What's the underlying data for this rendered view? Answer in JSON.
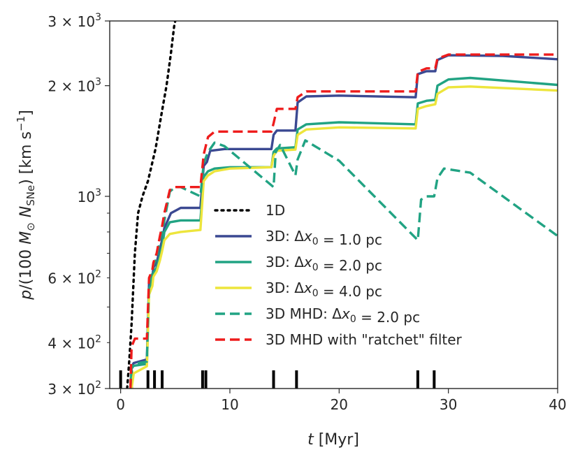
{
  "chart_data": {
    "type": "line",
    "yscale": "log",
    "xlim": [
      -1,
      40
    ],
    "ylim": [
      300,
      3000
    ],
    "xlabel": "t [Myr]",
    "ylabel": "p/(100 M⊙ N_SNe) [km s⁻¹]",
    "x_ticks": [
      0,
      10,
      20,
      30,
      40
    ],
    "x_tick_labels": [
      "0",
      "10",
      "20",
      "30",
      "40"
    ],
    "y_major_ticks": [
      300,
      1000,
      2000,
      3000
    ],
    "y_major_tick_labels": [
      {
        "mantissa": "3",
        "exp": "2"
      },
      {
        "mantissa": "",
        "exp": "3"
      },
      {
        "mantissa": "2",
        "exp": "3"
      },
      {
        "mantissa": "3",
        "exp": "3"
      }
    ],
    "y_minor_ticks": [
      400,
      600
    ],
    "y_minor_tick_labels": [
      {
        "mantissa": "4",
        "exp": "2"
      },
      {
        "mantissa": "6",
        "exp": "2"
      }
    ],
    "y_minor_unlabeled": [
      500,
      700,
      800,
      900
    ],
    "legend": {
      "placement": "lower-center",
      "entries": [
        {
          "series": "1D",
          "label_parts": [
            {
              "text": "1D"
            }
          ]
        },
        {
          "series": "3D dx1",
          "label_parts": [
            {
              "text": "3D: Δ"
            },
            {
              "text": "x",
              "italic": true
            },
            {
              "text": "0",
              "sub": true
            },
            {
              "text": " =  1.0 pc"
            }
          ]
        },
        {
          "series": "3D dx2",
          "label_parts": [
            {
              "text": "3D: Δ"
            },
            {
              "text": "x",
              "italic": true
            },
            {
              "text": "0",
              "sub": true
            },
            {
              "text": " =  2.0 pc"
            }
          ]
        },
        {
          "series": "3D dx4",
          "label_parts": [
            {
              "text": "3D: Δ"
            },
            {
              "text": "x",
              "italic": true
            },
            {
              "text": "0",
              "sub": true
            },
            {
              "text": " =  4.0 pc"
            }
          ]
        },
        {
          "series": "3D MHD dx2",
          "label_parts": [
            {
              "text": "3D MHD: Δ"
            },
            {
              "text": "x",
              "italic": true
            },
            {
              "text": "0",
              "sub": true
            },
            {
              "text": " =  2.0 pc"
            }
          ]
        },
        {
          "series": "3D MHD ratchet",
          "label_parts": [
            {
              "text": "3D MHD with \"ratchet\" filter"
            }
          ]
        }
      ]
    },
    "sn_times": [
      0,
      1,
      2.5,
      3.1,
      3.8,
      7.5,
      7.8,
      14,
      16.1,
      27.2,
      28.7
    ],
    "series": [
      {
        "name": "1D",
        "color": "#000000",
        "style": "dotted",
        "points": [
          [
            0.6,
            300
          ],
          [
            0.8,
            360
          ],
          [
            1.0,
            450
          ],
          [
            1.3,
            700
          ],
          [
            1.6,
            900
          ],
          [
            2.0,
            1000
          ],
          [
            2.5,
            1100
          ],
          [
            2.8,
            1200
          ],
          [
            3.2,
            1350
          ],
          [
            3.7,
            1650
          ],
          [
            4.2,
            2000
          ],
          [
            4.6,
            2450
          ],
          [
            4.9,
            2900
          ],
          [
            5.0,
            3000
          ]
        ]
      },
      {
        "name": "3D dx1",
        "color": "#3b4992",
        "style": "solid",
        "points": [
          [
            0.9,
            300
          ],
          [
            1.0,
            345
          ],
          [
            1.2,
            352
          ],
          [
            2.4,
            360
          ],
          [
            2.6,
            580
          ],
          [
            2.9,
            600
          ],
          [
            3.0,
            640
          ],
          [
            3.3,
            660
          ],
          [
            3.6,
            720
          ],
          [
            3.8,
            760
          ],
          [
            4.0,
            820
          ],
          [
            4.6,
            900
          ],
          [
            5.5,
            930
          ],
          [
            7.3,
            930
          ],
          [
            7.6,
            1210
          ],
          [
            7.9,
            1240
          ],
          [
            8.2,
            1330
          ],
          [
            9.5,
            1345
          ],
          [
            13.8,
            1345
          ],
          [
            14.0,
            1470
          ],
          [
            14.3,
            1510
          ],
          [
            16.0,
            1510
          ],
          [
            16.2,
            1800
          ],
          [
            17.0,
            1870
          ],
          [
            20,
            1880
          ],
          [
            27.0,
            1860
          ],
          [
            27.2,
            2150
          ],
          [
            28.0,
            2190
          ],
          [
            28.8,
            2190
          ],
          [
            29.0,
            2350
          ],
          [
            30.0,
            2420
          ],
          [
            35,
            2410
          ],
          [
            40,
            2360
          ]
        ]
      },
      {
        "name": "3D dx2",
        "color": "#21a383",
        "style": "solid",
        "points": [
          [
            0.9,
            300
          ],
          [
            1.0,
            340
          ],
          [
            1.2,
            346
          ],
          [
            2.4,
            350
          ],
          [
            2.6,
            560
          ],
          [
            2.9,
            590
          ],
          [
            3.0,
            620
          ],
          [
            3.3,
            640
          ],
          [
            3.6,
            690
          ],
          [
            3.8,
            730
          ],
          [
            4.0,
            800
          ],
          [
            4.5,
            850
          ],
          [
            5.5,
            860
          ],
          [
            7.3,
            860
          ],
          [
            7.6,
            1130
          ],
          [
            8.0,
            1170
          ],
          [
            8.6,
            1190
          ],
          [
            10,
            1200
          ],
          [
            13.8,
            1200
          ],
          [
            14.0,
            1320
          ],
          [
            14.3,
            1350
          ],
          [
            16.0,
            1360
          ],
          [
            16.2,
            1520
          ],
          [
            17.0,
            1570
          ],
          [
            20,
            1590
          ],
          [
            27.0,
            1570
          ],
          [
            27.2,
            1790
          ],
          [
            28.0,
            1820
          ],
          [
            28.8,
            1830
          ],
          [
            29.0,
            2000
          ],
          [
            30.0,
            2080
          ],
          [
            32,
            2100
          ],
          [
            40,
            2010
          ]
        ]
      },
      {
        "name": "3D dx4",
        "color": "#ede53c",
        "style": "solid",
        "points": [
          [
            1.0,
            300
          ],
          [
            1.2,
            330
          ],
          [
            2.4,
            345
          ],
          [
            2.6,
            540
          ],
          [
            2.9,
            570
          ],
          [
            3.0,
            605
          ],
          [
            3.3,
            625
          ],
          [
            3.6,
            670
          ],
          [
            3.8,
            710
          ],
          [
            4.0,
            760
          ],
          [
            4.5,
            790
          ],
          [
            5.5,
            800
          ],
          [
            7.3,
            810
          ],
          [
            7.6,
            1100
          ],
          [
            8.0,
            1140
          ],
          [
            8.6,
            1170
          ],
          [
            10,
            1190
          ],
          [
            13.8,
            1200
          ],
          [
            14.0,
            1290
          ],
          [
            14.3,
            1330
          ],
          [
            16.0,
            1340
          ],
          [
            16.2,
            1470
          ],
          [
            17.0,
            1520
          ],
          [
            20,
            1540
          ],
          [
            27.0,
            1530
          ],
          [
            27.2,
            1730
          ],
          [
            28.0,
            1760
          ],
          [
            28.8,
            1780
          ],
          [
            29.0,
            1900
          ],
          [
            30.0,
            1980
          ],
          [
            32,
            1990
          ],
          [
            40,
            1940
          ]
        ]
      },
      {
        "name": "3D MHD dx2",
        "color": "#21a383",
        "style": "dashed",
        "points": [
          [
            0.9,
            300
          ],
          [
            1.0,
            345
          ],
          [
            1.2,
            350
          ],
          [
            2.4,
            355
          ],
          [
            2.6,
            580
          ],
          [
            2.9,
            620
          ],
          [
            3.0,
            650
          ],
          [
            3.3,
            680
          ],
          [
            3.6,
            760
          ],
          [
            3.8,
            800
          ],
          [
            4.0,
            860
          ],
          [
            4.5,
            1030
          ],
          [
            5.0,
            1060
          ],
          [
            5.5,
            1060
          ],
          [
            7.3,
            1000
          ],
          [
            7.6,
            1230
          ],
          [
            8.0,
            1320
          ],
          [
            8.6,
            1400
          ],
          [
            9.5,
            1370
          ],
          [
            14.0,
            1060
          ],
          [
            14.2,
            1320
          ],
          [
            14.6,
            1380
          ],
          [
            16.0,
            1140
          ],
          [
            16.2,
            1260
          ],
          [
            16.9,
            1420
          ],
          [
            20,
            1250
          ],
          [
            27.2,
            760
          ],
          [
            27.5,
            980
          ],
          [
            28.0,
            1000
          ],
          [
            28.7,
            1000
          ],
          [
            29.0,
            1120
          ],
          [
            29.6,
            1190
          ],
          [
            32,
            1160
          ],
          [
            40,
            780
          ]
        ]
      },
      {
        "name": "3D MHD ratchet",
        "color": "#ee1c1c",
        "style": "dashed",
        "points": [
          [
            0.9,
            300
          ],
          [
            1.0,
            390
          ],
          [
            1.3,
            410
          ],
          [
            2.4,
            410
          ],
          [
            2.6,
            600
          ],
          [
            2.9,
            630
          ],
          [
            3.0,
            660
          ],
          [
            3.3,
            700
          ],
          [
            3.6,
            780
          ],
          [
            3.8,
            830
          ],
          [
            4.0,
            900
          ],
          [
            4.5,
            1040
          ],
          [
            5.0,
            1060
          ],
          [
            7.3,
            1060
          ],
          [
            7.6,
            1300
          ],
          [
            8.0,
            1450
          ],
          [
            8.6,
            1500
          ],
          [
            13.8,
            1500
          ],
          [
            14.0,
            1580
          ],
          [
            14.3,
            1730
          ],
          [
            16.0,
            1730
          ],
          [
            16.2,
            1860
          ],
          [
            17.0,
            1930
          ],
          [
            27.0,
            1930
          ],
          [
            27.2,
            2180
          ],
          [
            28.0,
            2230
          ],
          [
            28.8,
            2230
          ],
          [
            29.0,
            2370
          ],
          [
            30.0,
            2430
          ],
          [
            40,
            2430
          ]
        ]
      }
    ]
  }
}
